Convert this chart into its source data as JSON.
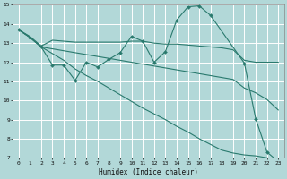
{
  "xlabel": "Humidex (Indice chaleur)",
  "bg_color": "#b2d8d8",
  "grid_color": "#ffffff",
  "line_color": "#2a7a6e",
  "xlim": [
    -0.5,
    23.5
  ],
  "ylim": [
    7,
    15
  ],
  "xticks": [
    0,
    1,
    2,
    3,
    4,
    5,
    6,
    7,
    8,
    9,
    10,
    11,
    12,
    13,
    14,
    15,
    16,
    17,
    18,
    19,
    20,
    21,
    22,
    23
  ],
  "yticks": [
    7,
    8,
    9,
    10,
    11,
    12,
    13,
    14,
    15
  ],
  "s1_x": [
    0,
    1,
    2,
    3,
    4,
    5,
    6,
    7,
    8,
    9,
    10,
    11,
    12,
    13,
    14,
    15,
    16,
    17,
    20,
    21,
    22,
    23
  ],
  "s1_y": [
    13.7,
    13.3,
    12.8,
    11.85,
    11.85,
    11.05,
    12.0,
    11.75,
    12.15,
    12.5,
    13.35,
    13.1,
    12.0,
    12.55,
    14.2,
    14.9,
    14.95,
    14.45,
    11.95,
    9.05,
    7.3,
    6.8
  ],
  "s2_x": [
    0,
    1,
    2,
    3,
    4,
    5,
    6,
    7,
    8,
    9,
    10,
    11,
    12,
    13,
    14,
    15,
    16,
    17,
    18,
    19,
    20,
    21,
    22,
    23
  ],
  "s2_y": [
    13.7,
    13.35,
    12.85,
    13.15,
    13.1,
    13.05,
    13.05,
    13.05,
    13.05,
    13.05,
    13.1,
    13.1,
    13.0,
    12.95,
    12.95,
    12.9,
    12.85,
    12.8,
    12.75,
    12.65,
    12.1,
    12.0,
    12.0,
    12.0
  ],
  "s3_x": [
    0,
    1,
    2,
    3,
    4,
    5,
    6,
    7,
    8,
    9,
    10,
    11,
    12,
    13,
    14,
    15,
    16,
    17,
    18,
    19,
    20,
    21,
    22,
    23
  ],
  "s3_y": [
    13.7,
    13.3,
    12.8,
    12.7,
    12.6,
    12.5,
    12.4,
    12.3,
    12.2,
    12.1,
    12.0,
    11.9,
    11.8,
    11.7,
    11.6,
    11.5,
    11.4,
    11.3,
    11.2,
    11.1,
    10.65,
    10.4,
    10.05,
    9.5
  ],
  "s4_x": [
    0,
    1,
    2,
    3,
    4,
    5,
    6,
    7,
    8,
    9,
    10,
    11,
    12,
    13,
    14,
    15,
    16,
    17,
    18,
    19,
    20,
    21,
    22,
    23
  ],
  "s4_y": [
    13.7,
    13.3,
    12.8,
    12.45,
    12.1,
    11.65,
    11.3,
    11.0,
    10.65,
    10.3,
    9.95,
    9.6,
    9.3,
    9.0,
    8.65,
    8.35,
    8.0,
    7.7,
    7.4,
    7.25,
    7.15,
    7.1,
    7.0,
    6.8
  ]
}
